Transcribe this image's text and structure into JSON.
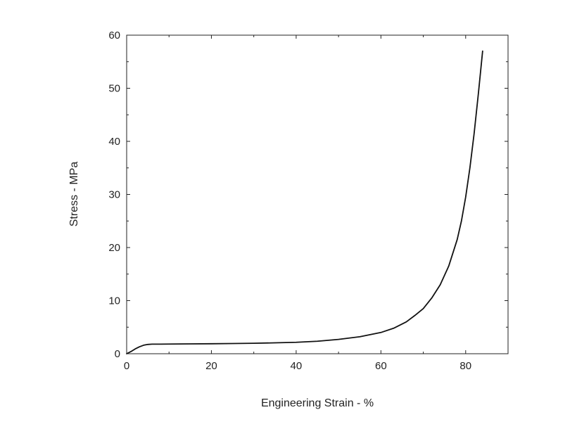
{
  "chart_data": {
    "type": "line",
    "title": "",
    "xlabel": "Engineering Strain - %",
    "ylabel": "Stress - MPa",
    "xlim": [
      0,
      90
    ],
    "ylim": [
      0,
      60
    ],
    "x_ticks": [
      0,
      20,
      40,
      60,
      80
    ],
    "y_ticks": [
      0,
      10,
      20,
      30,
      40,
      50,
      60
    ],
    "grid": false,
    "legend": "none",
    "line_color": "#111111",
    "series": [
      {
        "x": [
          0,
          1,
          2,
          3,
          4,
          5,
          6,
          8,
          10,
          15,
          20,
          25,
          30,
          35,
          40,
          45,
          50,
          55,
          60,
          63,
          66,
          68,
          70,
          72,
          74,
          76,
          78,
          79,
          80,
          81,
          82,
          83,
          83.5,
          84
        ],
        "y": [
          0,
          0.4,
          0.9,
          1.3,
          1.6,
          1.75,
          1.8,
          1.8,
          1.82,
          1.85,
          1.88,
          1.92,
          1.97,
          2.05,
          2.15,
          2.35,
          2.7,
          3.2,
          4.0,
          4.8,
          6.0,
          7.2,
          8.5,
          10.5,
          13.0,
          16.5,
          21.5,
          25.0,
          29.5,
          35.0,
          41.5,
          49.0,
          53.0,
          57.0
        ]
      }
    ]
  }
}
